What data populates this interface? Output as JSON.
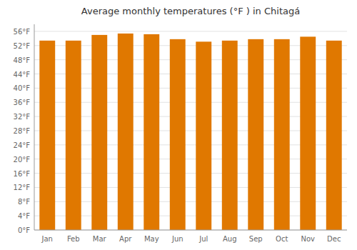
{
  "chart_data": {
    "type": "bar",
    "title": "Average monthly temperatures (°F ) in Chitagá",
    "categories": [
      "Jan",
      "Feb",
      "Mar",
      "Apr",
      "May",
      "Jun",
      "Jul",
      "Aug",
      "Sep",
      "Oct",
      "Nov",
      "Dec"
    ],
    "values": [
      53.4,
      53.4,
      55.0,
      55.4,
      55.2,
      53.8,
      53.1,
      53.4,
      53.8,
      53.8,
      54.5,
      53.4
    ],
    "color": "#E07800",
    "ylim": [
      0,
      58
    ],
    "yticks": [
      {
        "value": 0,
        "label": "0°F"
      },
      {
        "value": 4,
        "label": "4°F"
      },
      {
        "value": 8,
        "label": "8°F"
      },
      {
        "value": 12,
        "label": "12°F"
      },
      {
        "value": 16,
        "label": "16°F"
      },
      {
        "value": 20,
        "label": "20°F"
      },
      {
        "value": 24,
        "label": "24°F"
      },
      {
        "value": 28,
        "label": "28°F"
      },
      {
        "value": 32,
        "label": "32°F"
      },
      {
        "value": 36,
        "label": "36°F"
      },
      {
        "value": 40,
        "label": "40°F"
      },
      {
        "value": 44,
        "label": "44°F"
      },
      {
        "value": 48,
        "label": "48°F"
      },
      {
        "value": 52,
        "label": "52°F"
      },
      {
        "value": 56,
        "label": "56°F"
      }
    ],
    "grid": true
  }
}
